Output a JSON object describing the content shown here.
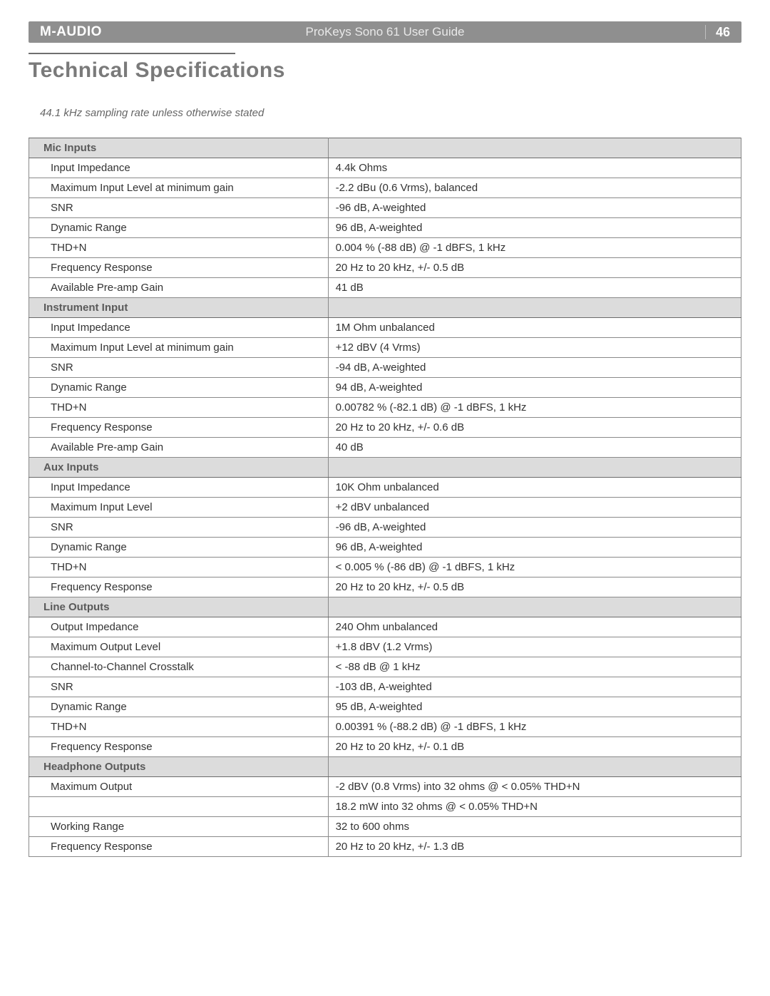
{
  "header": {
    "brand": "M-AUDIO",
    "doc_title": "ProKeys Sono 61 User Guide",
    "page_number": "46"
  },
  "title": "Technical Specifications",
  "note": "44.1 kHz sampling rate unless otherwise stated",
  "table": {
    "col_widths_pct": [
      42,
      58
    ],
    "header_bg": "#dcdcdc",
    "border_color": "#8a8a8a",
    "sections": [
      {
        "heading": "Mic Inputs",
        "rows": [
          {
            "label": "Input Impedance",
            "value": "4.4k Ohms"
          },
          {
            "label": "Maximum Input Level at minimum gain",
            "value": "-2.2 dBu (0.6 Vrms), balanced"
          },
          {
            "label": "SNR",
            "value": "-96 dB, A-weighted"
          },
          {
            "label": "Dynamic Range",
            "value": "96 dB, A-weighted"
          },
          {
            "label": "THD+N",
            "value": "0.004 % (-88 dB) @ -1 dBFS, 1 kHz"
          },
          {
            "label": "Frequency Response",
            "value": "20 Hz to 20 kHz, +/- 0.5 dB"
          },
          {
            "label": "Available Pre-amp Gain",
            "value": "41 dB"
          }
        ]
      },
      {
        "heading": "Instrument Input",
        "rows": [
          {
            "label": "Input Impedance",
            "value": "1M Ohm unbalanced"
          },
          {
            "label": "Maximum Input Level at minimum gain",
            "value": "+12 dBV (4 Vrms)"
          },
          {
            "label": "SNR",
            "value": "-94 dB, A-weighted"
          },
          {
            "label": "Dynamic Range",
            "value": "94 dB, A-weighted"
          },
          {
            "label": "THD+N",
            "value": "0.00782 % (-82.1 dB) @ -1 dBFS, 1 kHz"
          },
          {
            "label": "Frequency Response",
            "value": "20 Hz to 20 kHz, +/- 0.6 dB"
          },
          {
            "label": "Available Pre-amp Gain",
            "value": "40 dB"
          }
        ]
      },
      {
        "heading": "Aux Inputs",
        "rows": [
          {
            "label": "Input Impedance",
            "value": "10K Ohm unbalanced"
          },
          {
            "label": "Maximum Input Level",
            "value": "+2 dBV unbalanced"
          },
          {
            "label": "SNR",
            "value": "-96 dB, A-weighted"
          },
          {
            "label": "Dynamic Range",
            "value": "96 dB, A-weighted"
          },
          {
            "label": "THD+N",
            "value": "< 0.005 % (-86 dB) @ -1 dBFS, 1 kHz"
          },
          {
            "label": "Frequency Response",
            "value": "20 Hz to 20 kHz, +/- 0.5 dB"
          }
        ]
      },
      {
        "heading": "Line Outputs",
        "rows": [
          {
            "label": "Output Impedance",
            "value": "240 Ohm unbalanced"
          },
          {
            "label": "Maximum Output Level",
            "value": "+1.8 dBV (1.2 Vrms)"
          },
          {
            "label": "Channel-to-Channel Crosstalk",
            "value": "< -88 dB @ 1 kHz"
          },
          {
            "label": "SNR",
            "value": "-103 dB, A-weighted"
          },
          {
            "label": "Dynamic Range",
            "value": "95 dB, A-weighted"
          },
          {
            "label": "THD+N",
            "value": "0.00391 % (-88.2 dB) @ -1 dBFS, 1 kHz"
          },
          {
            "label": "Frequency Response",
            "value": "20 Hz to 20 kHz, +/- 0.1 dB"
          }
        ]
      },
      {
        "heading": "Headphone Outputs",
        "rows": [
          {
            "label": "Maximum Output",
            "value": "-2 dBV (0.8 Vrms) into 32 ohms @ < 0.05% THD+N"
          },
          {
            "label": "",
            "value": "18.2 mW into 32 ohms @ < 0.05% THD+N"
          },
          {
            "label": "Working Range",
            "value": "32 to 600 ohms"
          },
          {
            "label": "Frequency Response",
            "value": "20 Hz to 20 kHz, +/- 1.3 dB"
          }
        ]
      }
    ]
  },
  "colors": {
    "header_bar_bg": "#8f8f8f",
    "header_text": "#ffffff",
    "title_color": "#7a7a7a",
    "note_color": "#666666",
    "section_bg": "#dcdcdc",
    "section_text": "#5a5a5a",
    "cell_text": "#333333",
    "border": "#8a8a8a"
  }
}
